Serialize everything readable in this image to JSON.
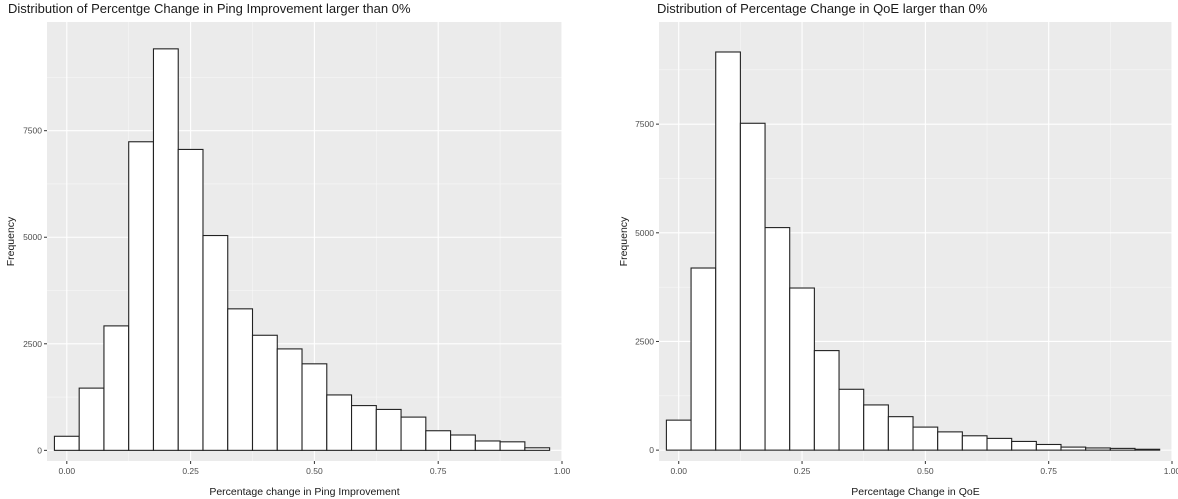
{
  "chart_data": [
    {
      "type": "bar",
      "title": "Distribution of Percentge Change in Ping Improvement larger than 0%",
      "xlabel": "Percentage change in Ping Improvement",
      "ylabel": "Frequency",
      "bin_width": 0.05,
      "bin_centers": [
        0.0,
        0.05,
        0.1,
        0.15,
        0.2,
        0.25,
        0.3,
        0.35,
        0.4,
        0.45,
        0.5,
        0.55,
        0.6,
        0.65,
        0.7,
        0.75,
        0.8,
        0.85,
        0.9,
        0.95
      ],
      "values": [
        330,
        1460,
        2920,
        7240,
        9420,
        7060,
        5040,
        3320,
        2700,
        2380,
        2030,
        1300,
        1050,
        960,
        780,
        460,
        360,
        220,
        200,
        60
      ],
      "xlim": [
        -0.04,
        1.0
      ],
      "ylim": [
        -250,
        10050
      ],
      "x_ticks": [
        0.0,
        0.25,
        0.5,
        0.75,
        1.0
      ],
      "x_tick_labels": [
        "0.00",
        "0.25",
        "0.50",
        "0.75",
        "1.00"
      ],
      "y_ticks": [
        0,
        2500,
        5000,
        7500
      ],
      "y_tick_labels": [
        "0",
        "2500",
        "5000",
        "7500"
      ],
      "grid": true,
      "panel_background": "#ebebeb",
      "bar_fill": "#ffffff",
      "bar_stroke": "#222222"
    },
    {
      "type": "bar",
      "title": "Distribution of Percentage Change in QoE larger than 0%",
      "xlabel": "Percentage Change in QoE",
      "ylabel": "Frequency",
      "bin_width": 0.05,
      "bin_centers": [
        0.0,
        0.05,
        0.1,
        0.15,
        0.2,
        0.25,
        0.3,
        0.35,
        0.4,
        0.45,
        0.5,
        0.55,
        0.6,
        0.65,
        0.7,
        0.75,
        0.8,
        0.85,
        0.9,
        0.95
      ],
      "values": [
        690,
        4190,
        9160,
        7520,
        5120,
        3730,
        2290,
        1400,
        1040,
        770,
        530,
        420,
        330,
        270,
        200,
        130,
        70,
        50,
        40,
        20
      ],
      "xlim": [
        -0.04,
        1.0
      ],
      "ylim": [
        -250,
        9850
      ],
      "x_ticks": [
        0.0,
        0.25,
        0.5,
        0.75,
        1.0
      ],
      "x_tick_labels": [
        "0.00",
        "0.25",
        "0.50",
        "0.75",
        "1.00"
      ],
      "y_ticks": [
        0,
        2500,
        5000,
        7500
      ],
      "y_tick_labels": [
        "0",
        "2500",
        "5000",
        "7500"
      ],
      "grid": true,
      "panel_background": "#ebebeb",
      "bar_fill": "#ffffff",
      "bar_stroke": "#222222"
    }
  ]
}
